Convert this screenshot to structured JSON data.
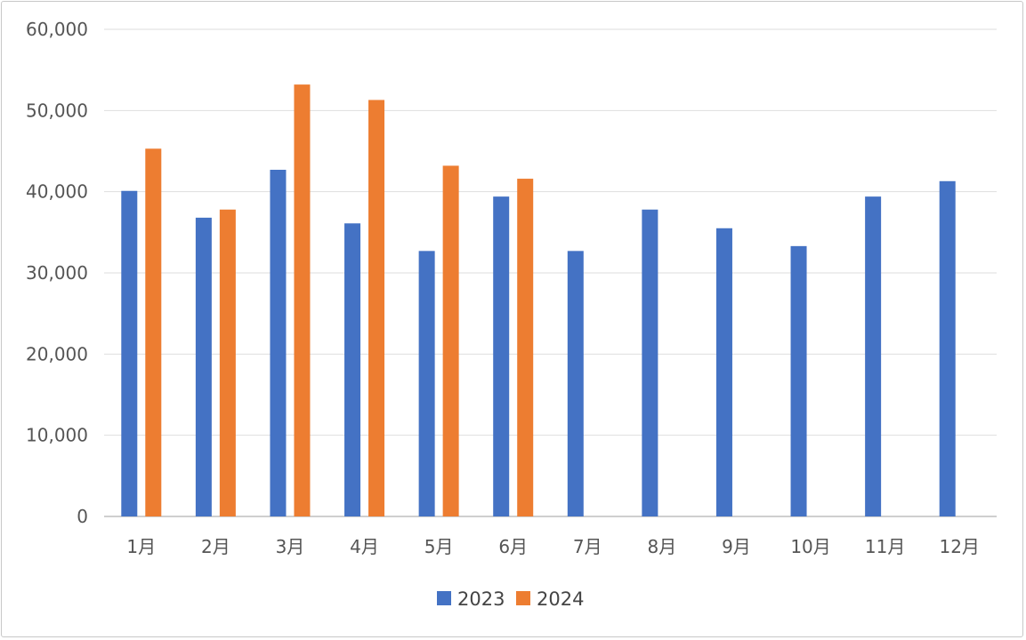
{
  "chart_data": {
    "type": "bar",
    "categories": [
      "1月",
      "2月",
      "3月",
      "4月",
      "5月",
      "6月",
      "7月",
      "8月",
      "9月",
      "10月",
      "11月",
      "12月"
    ],
    "series": [
      {
        "name": "2023",
        "color": "#4472C4",
        "values": [
          40100,
          36800,
          42700,
          36100,
          32700,
          39400,
          32700,
          37800,
          35500,
          33300,
          39400,
          41300
        ]
      },
      {
        "name": "2024",
        "color": "#ED7D31",
        "values": [
          45300,
          37800,
          53200,
          51300,
          43200,
          41600,
          null,
          null,
          null,
          null,
          null,
          null
        ]
      }
    ],
    "ylim": [
      0,
      60000
    ],
    "yticks": [
      0,
      10000,
      20000,
      30000,
      40000,
      50000,
      60000
    ],
    "ytick_labels": [
      "0",
      "10,000",
      "20,000",
      "30,000",
      "40,000",
      "50,000",
      "60,000"
    ],
    "grid": true,
    "legend": "bottom-center",
    "title": "",
    "xlabel": "",
    "ylabel": ""
  }
}
